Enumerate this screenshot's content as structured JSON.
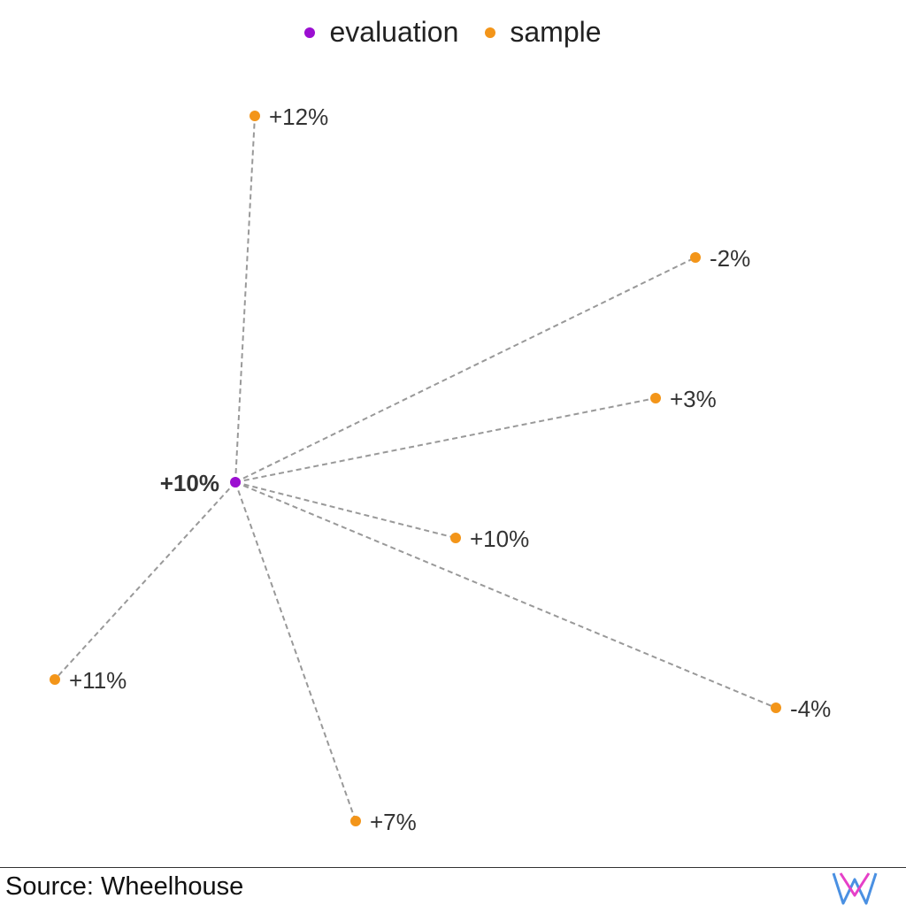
{
  "legend": {
    "items": [
      {
        "label": "evaluation",
        "color": "#9b0fd1"
      },
      {
        "label": "sample",
        "color": "#f39519"
      }
    ]
  },
  "footer": {
    "source": "Source: Wheelhouse",
    "logo_icon": "wheelhouse-logo-icon"
  },
  "chart_data": {
    "type": "scatter",
    "title": "",
    "xlabel": "",
    "ylabel": "",
    "grid": false,
    "legend_position": "top-center",
    "evaluation": {
      "label": "+10%",
      "value": 10,
      "color": "#9b0fd1"
    },
    "samples": [
      {
        "label": "+12%",
        "value": 12
      },
      {
        "label": "-2%",
        "value": -2
      },
      {
        "label": "+3%",
        "value": 3
      },
      {
        "label": "+10%",
        "value": 10
      },
      {
        "label": "-4%",
        "value": -4
      },
      {
        "label": "+11%",
        "value": 11
      },
      {
        "label": "+7%",
        "value": 7
      }
    ],
    "sample_color": "#f39519",
    "connector_color": "#999999"
  }
}
